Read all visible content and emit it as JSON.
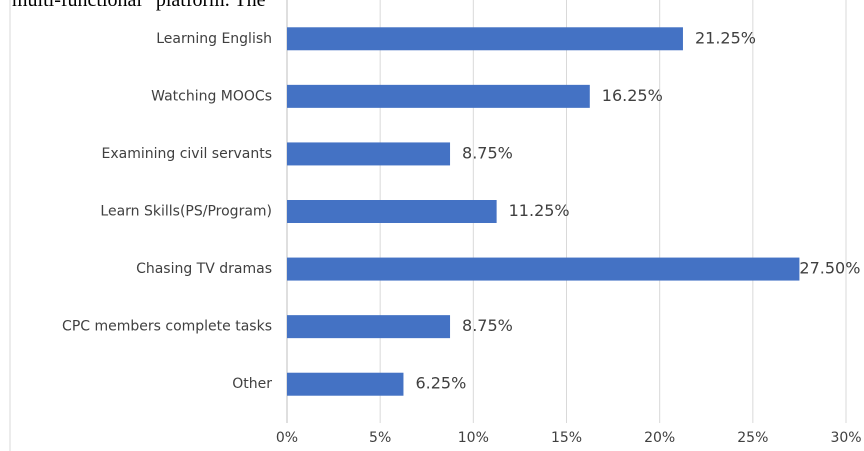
{
  "chart_data": {
    "type": "bar",
    "orientation": "horizontal",
    "annotations": [
      "multi-functional” platform. The"
    ],
    "categories": [
      "Learning English",
      "Watching MOOCs",
      "Examining civil servants",
      "Learn Skills(PS/Program)",
      "Chasing TV dramas",
      "CPC members complete tasks",
      "Other"
    ],
    "values": [
      21.25,
      16.25,
      8.75,
      11.25,
      27.5,
      8.75,
      6.25
    ],
    "value_labels": [
      "21.25%",
      "16.25%",
      "8.75%",
      "11.25%",
      "27.50%",
      "8.75%",
      "6.25%"
    ],
    "color": "#4472c4",
    "xlim": [
      0,
      30
    ],
    "xticks": [
      {
        "value": 0,
        "label": "0%"
      },
      {
        "value": 5,
        "label": "5%"
      },
      {
        "value": 10,
        "label": "10%"
      },
      {
        "value": 15,
        "label": "15%"
      },
      {
        "value": 20,
        "label": "20%"
      },
      {
        "value": 25,
        "label": "25%"
      },
      {
        "value": 30,
        "label": "30%"
      }
    ],
    "grid": true
  }
}
